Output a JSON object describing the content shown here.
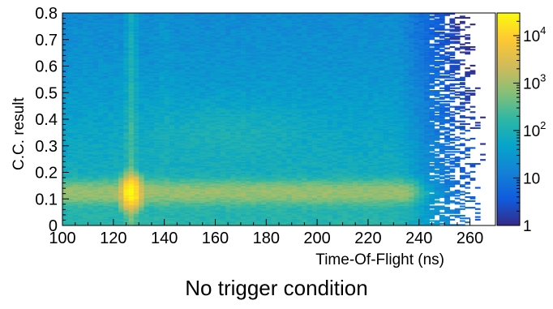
{
  "caption": "No trigger condition",
  "chart_data": {
    "type": "heatmap",
    "title": "",
    "xlabel": "Time-Of-Flight (ns)",
    "ylabel": "C.C. result",
    "xlim": [
      100,
      270
    ],
    "ylim": [
      0,
      0.8
    ],
    "x_ticks": [
      100,
      120,
      140,
      160,
      180,
      200,
      220,
      240,
      260
    ],
    "x_tick_labels": [
      "100",
      "120",
      "140",
      "160",
      "180",
      "200",
      "220",
      "240",
      "260"
    ],
    "y_ticks": [
      0,
      0.1,
      0.2,
      0.3,
      0.4,
      0.5,
      0.6,
      0.7,
      0.8
    ],
    "y_tick_labels": [
      "0",
      "0.1",
      "0.2",
      "0.3",
      "0.4",
      "0.5",
      "0.6",
      "0.7",
      "0.8"
    ],
    "colorbar": {
      "scale": "log",
      "range": [
        1,
        30000
      ],
      "ticks": [
        {
          "value": 1,
          "base": "1",
          "exp": ""
        },
        {
          "value": 10,
          "base": "10",
          "exp": ""
        },
        {
          "value": 100,
          "base": "10",
          "exp": "2"
        },
        {
          "value": 1000,
          "base": "10",
          "exp": "3"
        },
        {
          "value": 10000,
          "base": "10",
          "exp": "4"
        }
      ],
      "colormap": [
        "#352a87",
        "#0f5cdd",
        "#1481d6",
        "#06a4ca",
        "#2eb7a4",
        "#87bf77",
        "#d1bb59",
        "#fec832",
        "#f9fb0e"
      ]
    },
    "features": {
      "tof_peak_ns": 127,
      "cc_band_center": 0.125,
      "band_end_ns": 240,
      "edge_ns": 262,
      "peak_counts": 30000
    }
  }
}
